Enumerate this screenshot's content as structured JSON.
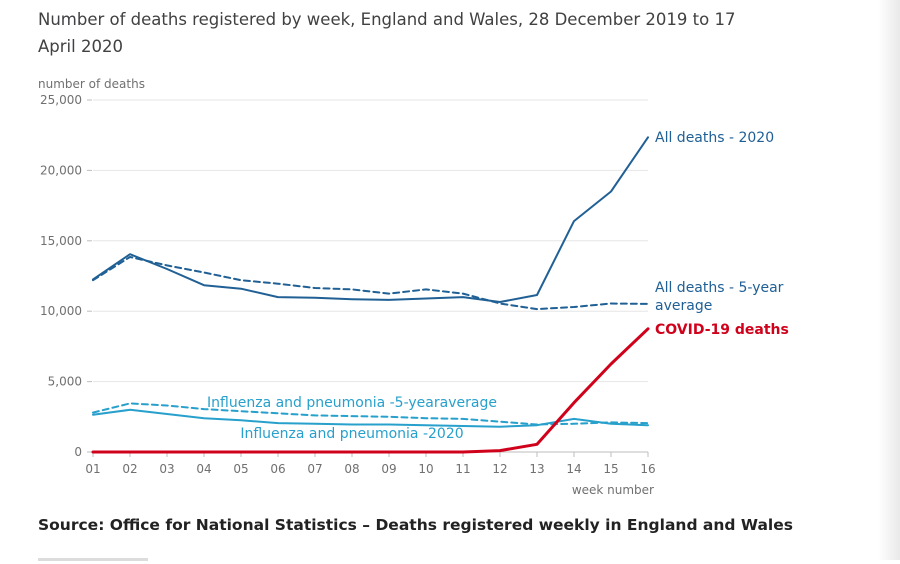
{
  "page": {
    "title": "Number of deaths registered by week, England and Wales, 28 December 2019 to 17 April 2020",
    "source": "Source: Office for National Statistics – Deaths registered weekly in England and Wales"
  },
  "chart_data": {
    "type": "line",
    "title": "Number of deaths registered by week, England and Wales, 28 December 2019 to 17 April 2020",
    "ylabel": "number of deaths",
    "xlabel": "week number",
    "ylim": [
      0,
      25000
    ],
    "yticks": [
      0,
      5000,
      10000,
      15000,
      20000,
      25000
    ],
    "ytick_labels": [
      "0",
      "5,000",
      "10,000",
      "15,000",
      "20,000",
      "25,000"
    ],
    "categories": [
      "01",
      "02",
      "03",
      "04",
      "05",
      "06",
      "07",
      "08",
      "09",
      "10",
      "11",
      "12",
      "13",
      "14",
      "15",
      "16"
    ],
    "series": [
      {
        "name": "All deaths - 2020",
        "label_lines": [
          "All deaths - 2020"
        ],
        "color": "#206095",
        "style": "solid",
        "bold": false,
        "values": [
          12250,
          14050,
          13000,
          11850,
          11600,
          11000,
          10950,
          10850,
          10800,
          10900,
          11000,
          10650,
          11150,
          16400,
          18500,
          22350
        ]
      },
      {
        "name": "All deaths - 5-year average",
        "label_lines": [
          "All deaths - 5-year",
          "average"
        ],
        "color": "#206095",
        "style": "dashed",
        "bold": false,
        "values": [
          12200,
          13850,
          13250,
          12750,
          12200,
          11950,
          11650,
          11550,
          11250,
          11550,
          11250,
          10550,
          10150,
          10300,
          10550,
          10520
        ]
      },
      {
        "name": "COVID-19 deaths",
        "label_lines": [
          "COVID-19 deaths"
        ],
        "color": "#d0021b",
        "style": "solid",
        "bold": true,
        "values": [
          0,
          0,
          0,
          0,
          0,
          0,
          0,
          0,
          0,
          0,
          0,
          100,
          550,
          3500,
          6250,
          8750
        ]
      },
      {
        "name": "Influenza and pneumonia -5-yearaverage",
        "label_lines": [
          "Influenza and pneumonia -5-yearaverage"
        ],
        "color": "#27a0cc",
        "style": "dashed",
        "bold": false,
        "values": [
          2800,
          3450,
          3300,
          3050,
          2900,
          2750,
          2600,
          2550,
          2500,
          2400,
          2350,
          2150,
          1950,
          2000,
          2100,
          2050
        ]
      },
      {
        "name": "Influenza and pneumonia -2020",
        "label_lines": [
          "Influenza and pneumonia -2020"
        ],
        "color": "#27a0cc",
        "style": "solid",
        "bold": false,
        "values": [
          2650,
          3000,
          2700,
          2400,
          2250,
          2050,
          2000,
          1950,
          1950,
          1900,
          1850,
          1800,
          1900,
          2350,
          2000,
          1900
        ]
      }
    ]
  }
}
